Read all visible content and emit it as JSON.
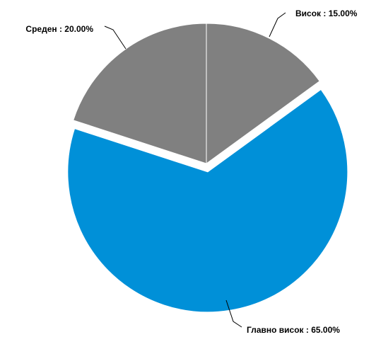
{
  "chart_data": {
    "type": "pie",
    "title": "",
    "slices": [
      {
        "label": "Висок",
        "value": 15.0,
        "value_label": "15.00%",
        "color": "#808080",
        "exploded": false
      },
      {
        "label": "Главно висок",
        "value": 65.0,
        "value_label": "65.00%",
        "color": "#0090d8",
        "exploded": true
      },
      {
        "label": "Среден",
        "value": 20.0,
        "value_label": "20.00%",
        "color": "#808080",
        "exploded": false
      }
    ],
    "label_separator": " : ",
    "start_angle_deg": 0,
    "direction": "clockwise",
    "legend": "none"
  }
}
